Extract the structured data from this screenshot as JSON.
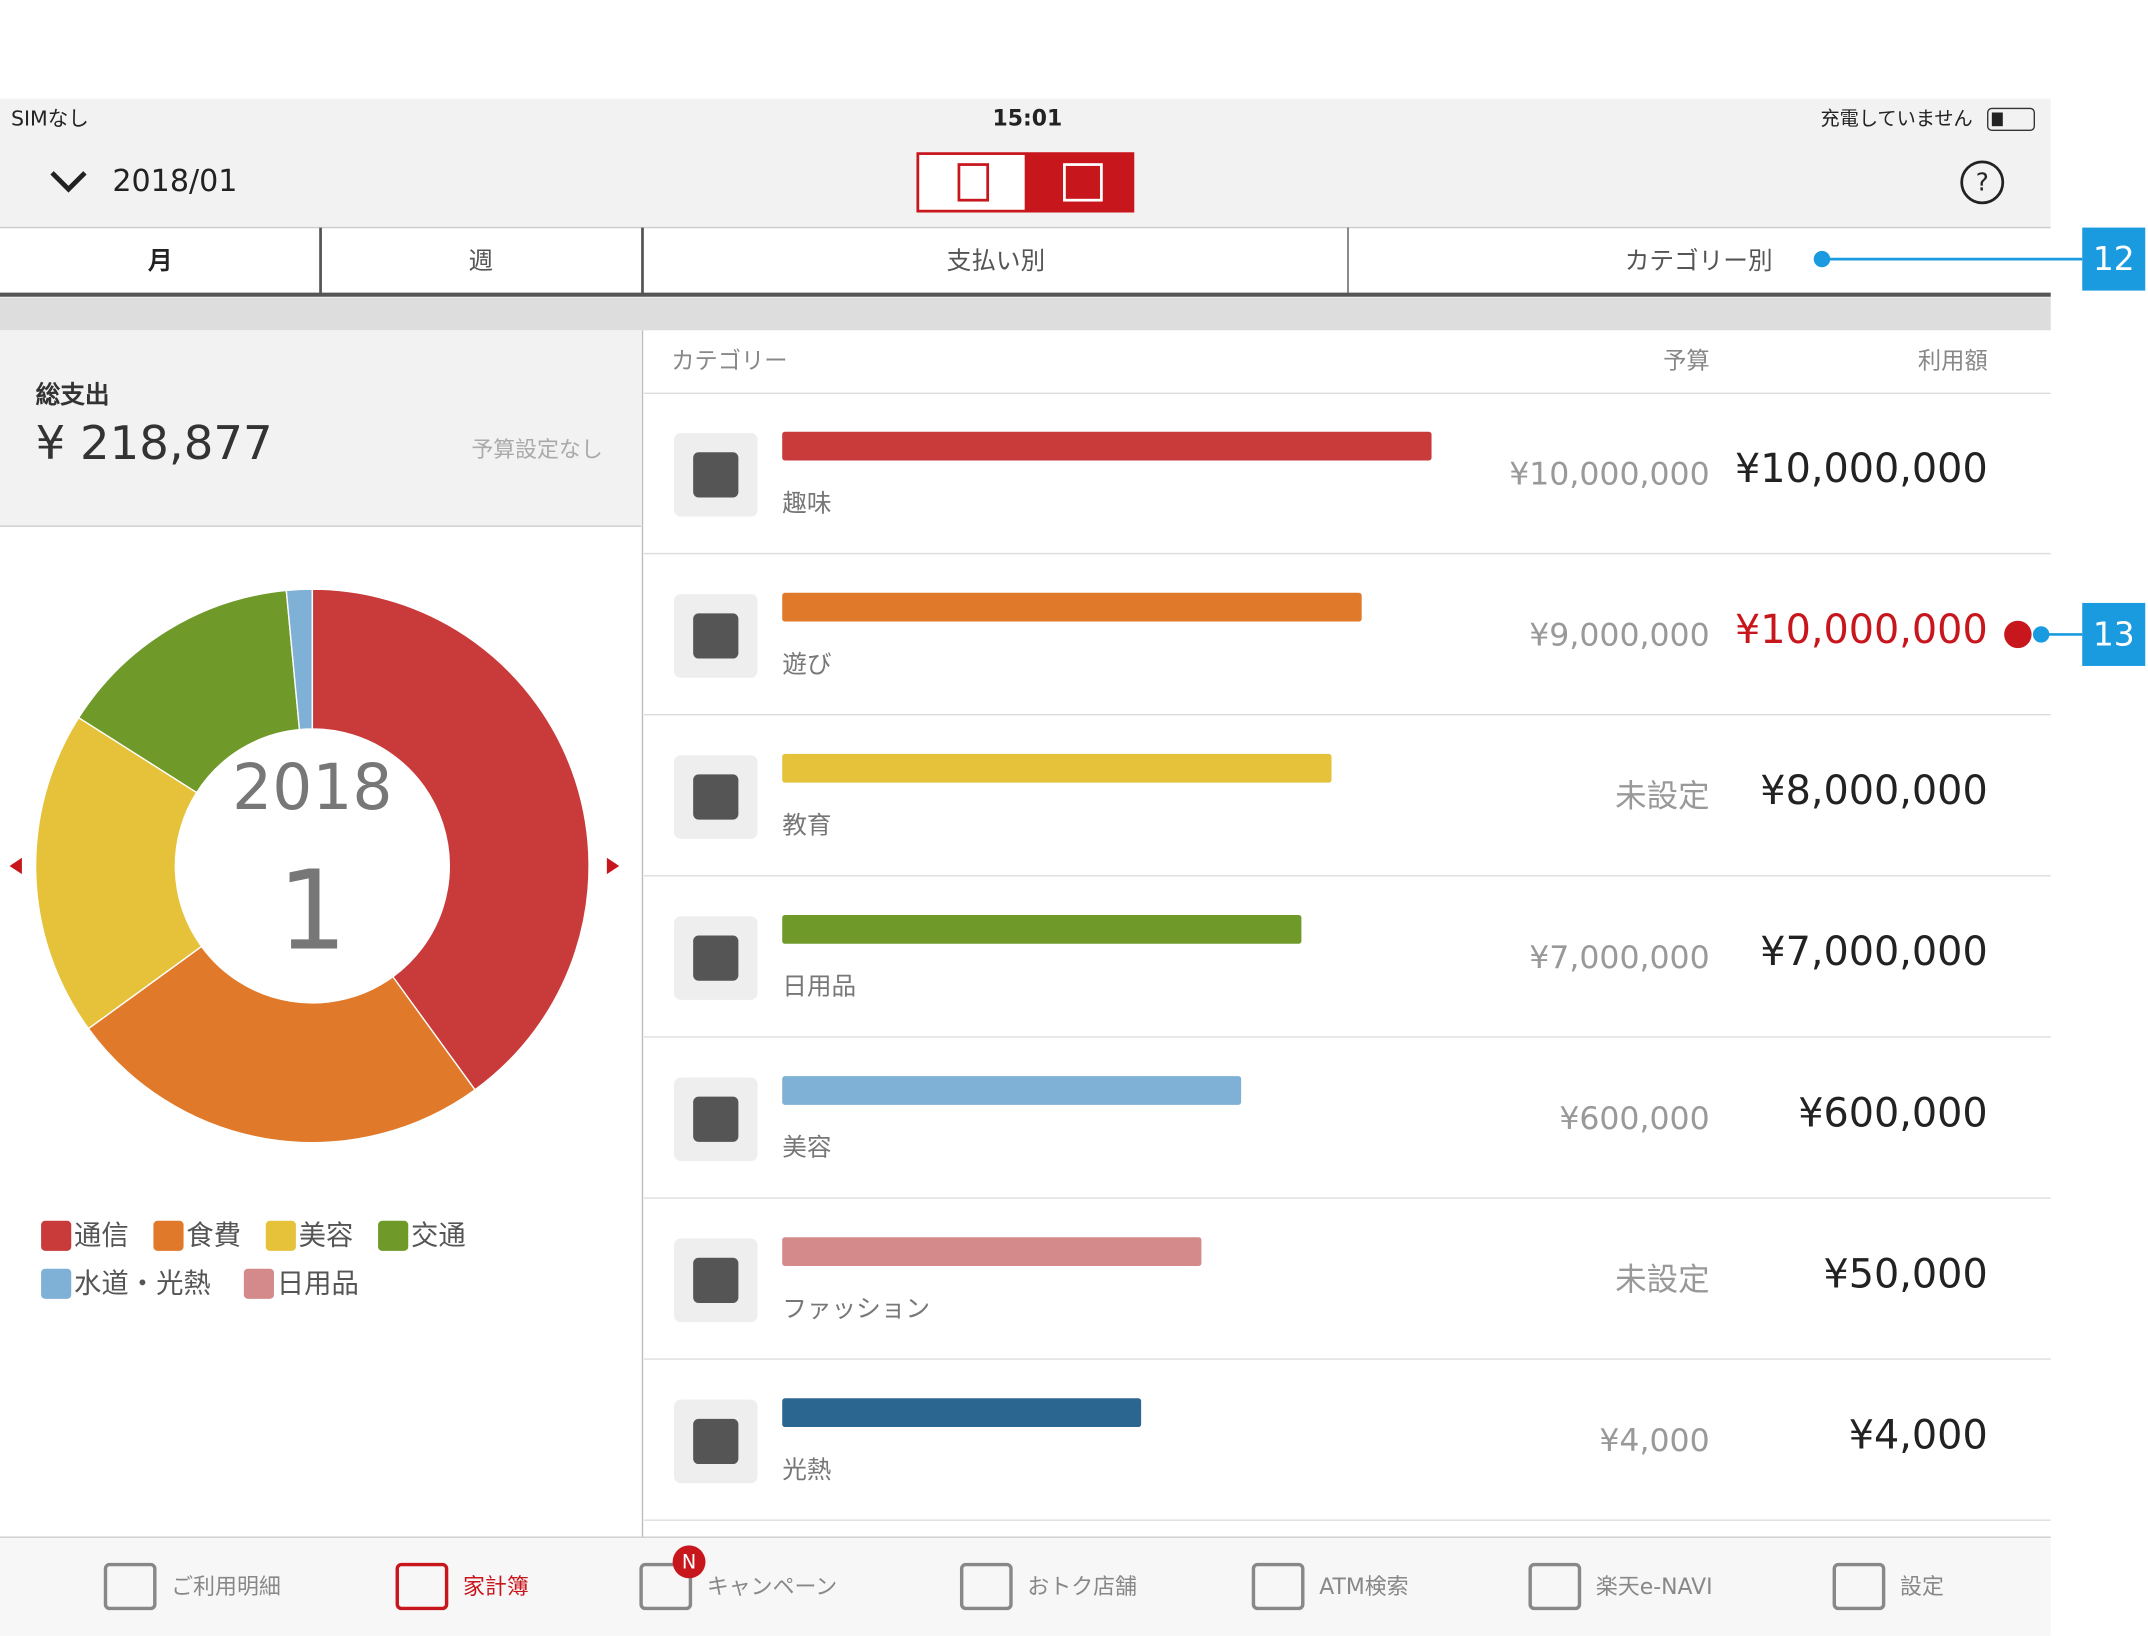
{
  "status": {
    "carrier": "SIMなし",
    "time": "15:01",
    "battery": "充電していません"
  },
  "header": {
    "month": "2018/01"
  },
  "tabs": [
    "月",
    "週",
    "支払い別",
    "カテゴリー別"
  ],
  "summary": {
    "label": "総支出",
    "total": "¥ 218,877",
    "note": "予算設定なし"
  },
  "chart_data": {
    "type": "pie",
    "center_year": "2018",
    "center_month": "1",
    "categories": [
      "通信",
      "食費",
      "美容",
      "交通",
      "水道・光熱",
      "日用品"
    ],
    "values": [
      40,
      25,
      19,
      14.5,
      1.5,
      0
    ],
    "colors": [
      "#c93a3a",
      "#e07a2a",
      "#e5c23a",
      "#6f9a2a",
      "#7fb0d5",
      "#d48a8a"
    ]
  },
  "table": {
    "headers": [
      "カテゴリー",
      "予算",
      "利用額"
    ],
    "rows": [
      {
        "name": "趣味",
        "color": "#c93a3a",
        "budget": "¥10,000,000",
        "amount": "¥10,000,000",
        "over": false
      },
      {
        "name": "遊び",
        "color": "#e07a2a",
        "budget": "¥9,000,000",
        "amount": "¥10,000,000",
        "over": true
      },
      {
        "name": "教育",
        "color": "#e5c23a",
        "budget": "未設定",
        "amount": "¥8,000,000",
        "over": false
      },
      {
        "name": "日用品",
        "color": "#6f9a2a",
        "budget": "¥7,000,000",
        "amount": "¥7,000,000",
        "over": false
      },
      {
        "name": "美容",
        "color": "#7fb0d5",
        "budget": "¥600,000",
        "amount": "¥600,000",
        "over": false
      },
      {
        "name": "ファッション",
        "color": "#d48a8a",
        "budget": "未設定",
        "amount": "¥50,000",
        "over": false
      },
      {
        "name": "光熱",
        "color": "#2a6690",
        "budget": "¥4,000",
        "amount": "¥4,000",
        "over": false
      }
    ]
  },
  "nav": {
    "items": [
      "ご利用明細",
      "家計簿",
      "キャンペーン",
      "おトク店舗",
      "ATM検索",
      "楽天e-NAVI",
      "設定"
    ],
    "badge": "N"
  },
  "annotations": [
    "12",
    "13"
  ]
}
